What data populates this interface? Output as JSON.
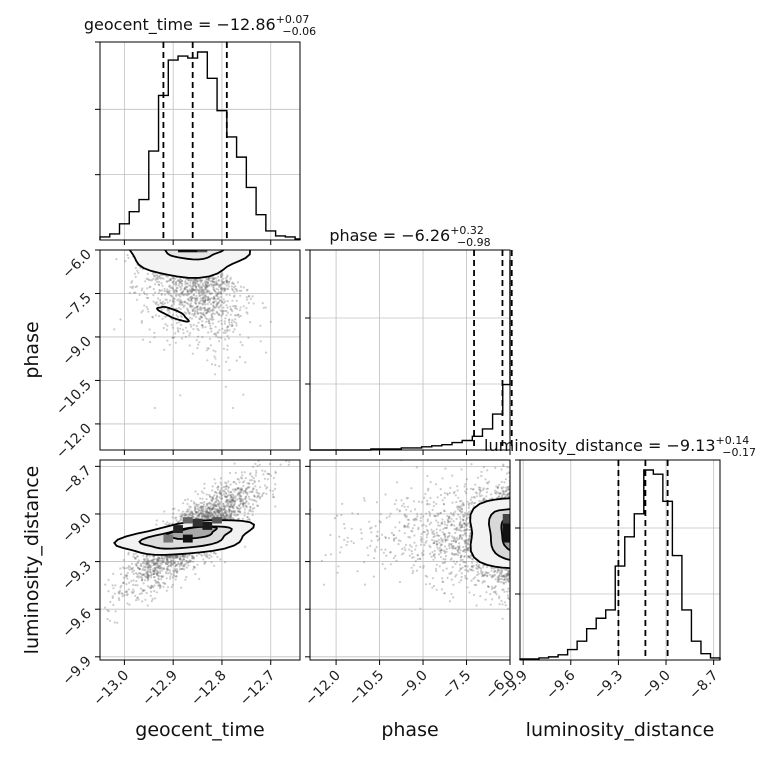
{
  "chart_data": {
    "type": "corner",
    "parameters": [
      {
        "name": "geocent_time",
        "xlabel": "geocent_time",
        "title": "geocent_time = −12.86",
        "title_upper": "+0.07",
        "title_lower": "−0.06",
        "range": [
          -13.05,
          -12.64
        ],
        "ticks": [
          -13.0,
          -12.9,
          -12.8,
          -12.7
        ],
        "tick_labels": [
          "−13.0",
          "−12.9",
          "−12.8",
          "−12.7"
        ],
        "quantiles": [
          -12.92,
          -12.86,
          -12.79
        ],
        "histogram": {
          "bins": [
            -13.05,
            -13.03,
            -13.01,
            -12.99,
            -12.97,
            -12.95,
            -12.93,
            -12.91,
            -12.89,
            -12.87,
            -12.85,
            -12.83,
            -12.81,
            -12.79,
            -12.77,
            -12.75,
            -12.73,
            -12.71,
            -12.69,
            -12.67,
            -12.65,
            -12.63
          ],
          "counts": [
            3,
            6,
            16,
            28,
            40,
            88,
            143,
            178,
            182,
            180,
            186,
            160,
            128,
            102,
            82,
            52,
            25,
            9,
            4,
            3,
            1
          ]
        }
      },
      {
        "name": "phase",
        "xlabel": "phase",
        "title": "phase = −6.26",
        "title_upper": "+0.32",
        "title_lower": "−0.98",
        "range": [
          -12.9,
          -6.0
        ],
        "ticks": [
          -12.0,
          -10.5,
          -9.0,
          -7.5,
          -6.0
        ],
        "tick_labels": [
          "−12.0",
          "−10.5",
          "−9.0",
          "−7.5",
          "−6.0"
        ],
        "quantiles": [
          -7.24,
          -6.26,
          -5.94
        ],
        "histogram": {
          "bins": [
            -12.9,
            -12.55,
            -12.2,
            -11.85,
            -11.5,
            -11.15,
            -10.8,
            -10.45,
            -10.1,
            -9.75,
            -9.4,
            -9.05,
            -8.7,
            -8.35,
            -8.0,
            -7.65,
            -7.3,
            -6.95,
            -6.6,
            -6.25,
            -5.9
          ],
          "counts": [
            0,
            0,
            0,
            0,
            0,
            0,
            1,
            1,
            1,
            2,
            2,
            3,
            4,
            5,
            7,
            9,
            13,
            20,
            34,
            62,
            180
          ]
        }
      },
      {
        "name": "luminosity_distance",
        "xlabel": "luminosity_distance",
        "title": "luminosity_distance = −9.13",
        "title_upper": "+0.14",
        "title_lower": "−0.17",
        "range": [
          -9.92,
          -8.66
        ],
        "ticks": [
          -9.9,
          -9.6,
          -9.3,
          -9.0,
          -8.7
        ],
        "tick_labels": [
          "−9.9",
          "−9.6",
          "−9.3",
          "−9.0",
          "−8.7"
        ],
        "quantiles": [
          -9.3,
          -9.13,
          -8.99
        ],
        "histogram": {
          "bins": [
            -9.92,
            -9.86,
            -9.8,
            -9.74,
            -9.68,
            -9.62,
            -9.56,
            -9.5,
            -9.44,
            -9.38,
            -9.32,
            -9.26,
            -9.2,
            -9.14,
            -9.08,
            -9.02,
            -8.96,
            -8.9,
            -8.84,
            -8.78,
            -8.72,
            -8.66
          ],
          "counts": [
            1,
            1,
            2,
            3,
            5,
            10,
            18,
            30,
            40,
            48,
            90,
            118,
            140,
            182,
            178,
            152,
            100,
            48,
            18,
            6,
            2
          ]
        }
      }
    ],
    "pairs": [
      {
        "x": "geocent_time",
        "y": "phase",
        "scatter": "dense-top-fading-down-right",
        "contours": 2
      },
      {
        "x": "geocent_time",
        "y": "luminosity_distance",
        "scatter": "correlated-positive",
        "contours": 3
      },
      {
        "x": "phase",
        "y": "luminosity_distance",
        "scatter": "dense-right-edge",
        "contours": 3
      }
    ],
    "quantile_levels": [
      0.16,
      0.5,
      0.84
    ],
    "grid": true,
    "colors": {
      "line": "#000000",
      "scatter": "#6e6e6e",
      "grid": "#c0c0c0"
    }
  }
}
